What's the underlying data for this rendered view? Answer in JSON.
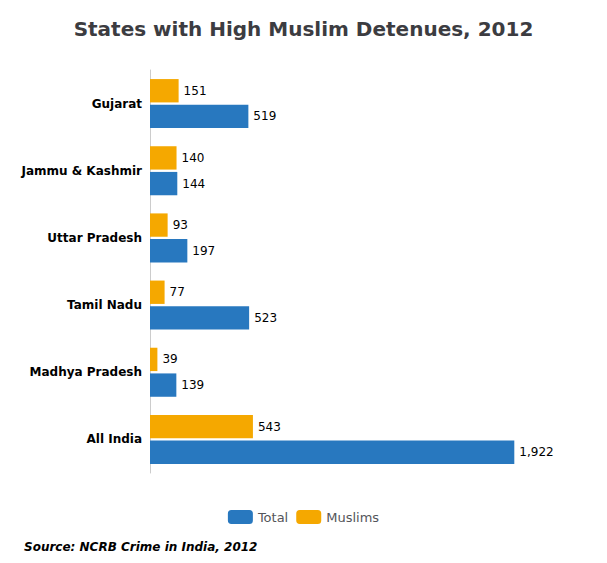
{
  "chart_data": {
    "type": "bar",
    "orientation": "horizontal",
    "title": "States with High Muslim Detenues, 2012",
    "categories": [
      "All India",
      "Madhya Pradesh",
      "Tamil Nadu",
      "Uttar Pradesh",
      "Jammu & Kashmir",
      "Gujarat"
    ],
    "series": [
      {
        "name": "Total",
        "color": "#2878BF",
        "values": [
          1922,
          139,
          523,
          197,
          144,
          519
        ],
        "value_labels": [
          "1,922",
          "139",
          "523",
          "197",
          "144",
          "519"
        ]
      },
      {
        "name": "Muslims",
        "color": "#F5A800",
        "values": [
          543,
          39,
          77,
          93,
          140,
          151
        ],
        "value_labels": [
          "543",
          "39",
          "77",
          "93",
          "140",
          "151"
        ]
      }
    ],
    "xlim": [
      0,
      2200
    ],
    "data_labels": true,
    "tick_labels": "y",
    "grid": false,
    "legend": "bottom",
    "annotations": [
      "Source: NCRB Crime in India, 2012"
    ]
  }
}
